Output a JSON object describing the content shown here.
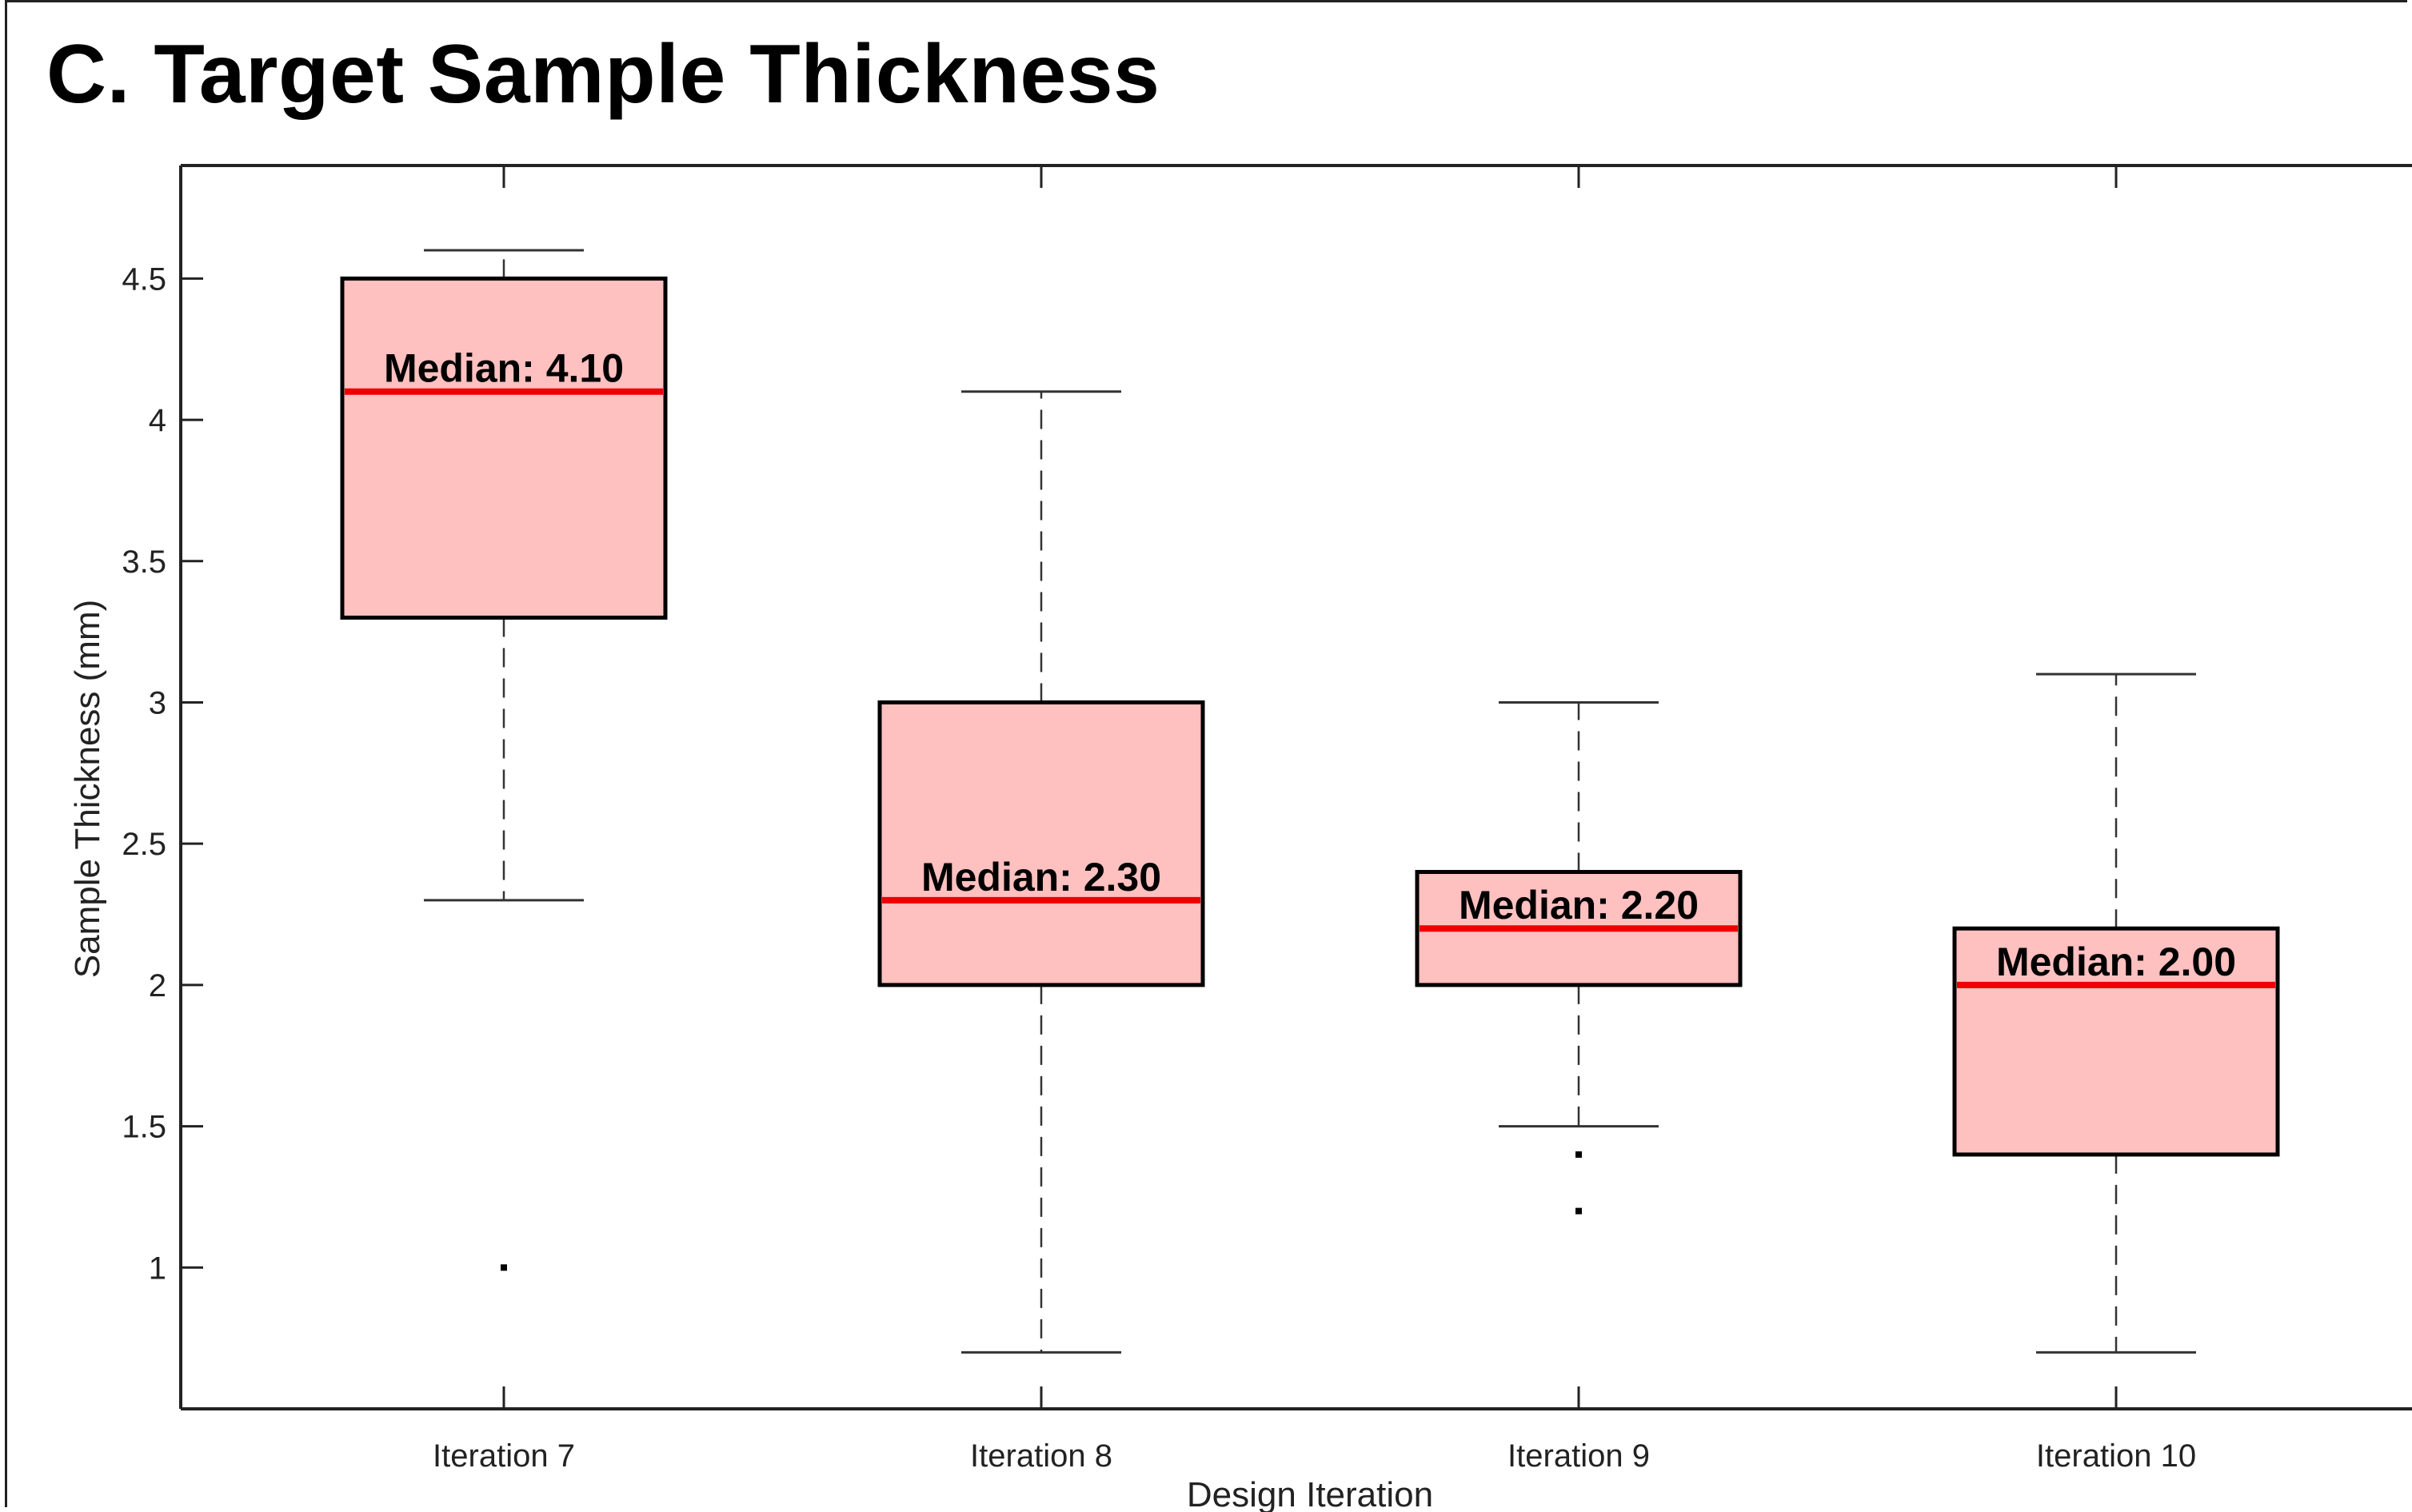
{
  "panel": {
    "title": "C. Target Sample Thickness"
  },
  "chart_data": {
    "type": "boxplot",
    "title": "C. Target Sample Thickness",
    "xlabel": "Design Iteration",
    "ylabel": "Sample Thickness (mm)",
    "ylim": [
      0.5,
      4.9
    ],
    "yticks": [
      1,
      1.5,
      2,
      2.5,
      3,
      3.5,
      4,
      4.5
    ],
    "ytick_labels": [
      "1",
      "1.5",
      "2",
      "2.5",
      "3",
      "3.5",
      "4",
      "4.5"
    ],
    "categories": [
      "Iteration 7",
      "Iteration 8",
      "Iteration 9",
      "Iteration 10"
    ],
    "box_fill_color": "#ffc0c0",
    "median_color": "#ee0000",
    "boxes": [
      {
        "category": "Iteration 7",
        "whisker_low": 2.3,
        "q1": 3.3,
        "median": 4.1,
        "q3": 4.5,
        "whisker_high": 4.6,
        "outliers": [
          1.0
        ],
        "median_label": "Median: 4.10"
      },
      {
        "category": "Iteration 8",
        "whisker_low": 0.7,
        "q1": 2.0,
        "median": 2.3,
        "q3": 3.0,
        "whisker_high": 4.1,
        "outliers": [],
        "median_label": "Median: 2.30"
      },
      {
        "category": "Iteration 9",
        "whisker_low": 1.5,
        "q1": 2.0,
        "median": 2.2,
        "q3": 2.4,
        "whisker_high": 3.0,
        "outliers": [
          1.4,
          1.2
        ],
        "median_label": "Median: 2.20"
      },
      {
        "category": "Iteration 10",
        "whisker_low": 0.7,
        "q1": 1.4,
        "median": 2.0,
        "q3": 2.2,
        "whisker_high": 3.1,
        "outliers": [],
        "median_label": "Median: 2.00"
      }
    ],
    "grid": false,
    "legend": "none"
  }
}
